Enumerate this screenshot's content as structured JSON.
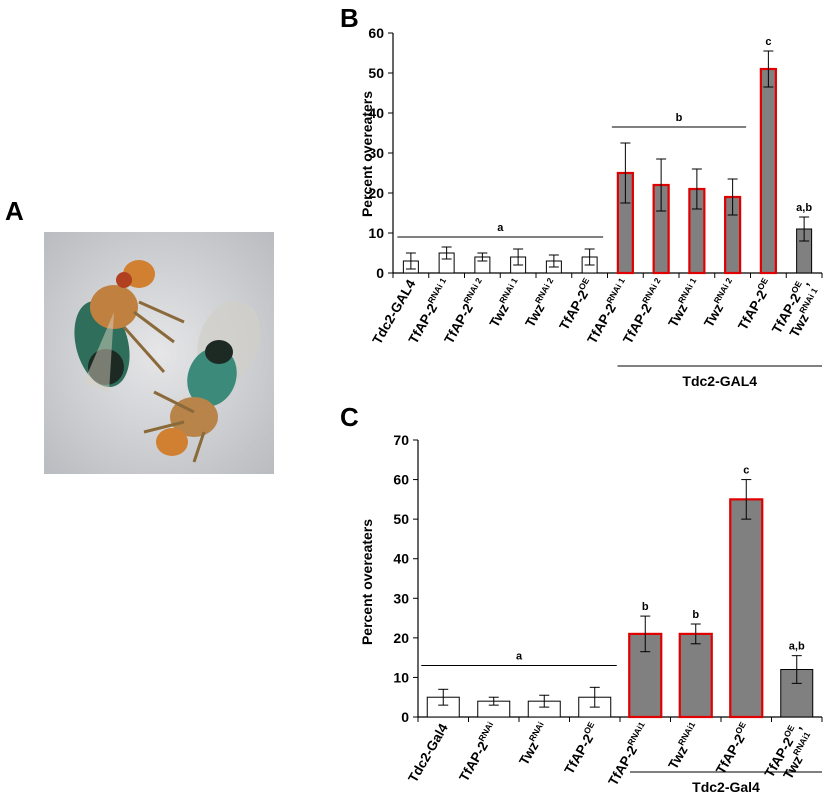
{
  "panels": {
    "a": "A",
    "b": "B",
    "c": "C"
  },
  "photo": {
    "description_icon": "fly-photo"
  },
  "chart_data": [
    {
      "type": "bar",
      "ylabel": "Percent overeaters",
      "ylim": [
        0,
        60
      ],
      "yticks": [
        0,
        10,
        20,
        30,
        40,
        50,
        60
      ],
      "categories": [
        {
          "base": "Tdc2-GAL4",
          "sup": ""
        },
        {
          "base": "TfAP-2",
          "sup": "RNAi 1"
        },
        {
          "base": "TfAP-2",
          "sup": "RNAi 2"
        },
        {
          "base": "Twz",
          "sup": "RNAi 1"
        },
        {
          "base": "Twz",
          "sup": "RNAi 2"
        },
        {
          "base": "TfAP-2",
          "sup": "OE"
        },
        {
          "base": "TfAP-2",
          "sup": "RNAi 1"
        },
        {
          "base": "TfAP-2",
          "sup": "RNAi 2"
        },
        {
          "base": "Twz",
          "sup": "RNAi 1"
        },
        {
          "base": "Twz",
          "sup": "RNAi 2"
        },
        {
          "base": "TfAP-2",
          "sup": "OE"
        },
        {
          "base": "TfAP-2",
          "sup": "OE",
          "base2": "Twz",
          "sup2": "RNAi 1"
        }
      ],
      "values": [
        3,
        5,
        4,
        4,
        3,
        4,
        25,
        22,
        21,
        19,
        51,
        11
      ],
      "errors": [
        2,
        1.5,
        1,
        2,
        1.5,
        2,
        7.5,
        6.5,
        5,
        4.5,
        4.5,
        3
      ],
      "fills": [
        "#ffffff",
        "#ffffff",
        "#ffffff",
        "#ffffff",
        "#ffffff",
        "#ffffff",
        "#808080",
        "#808080",
        "#808080",
        "#808080",
        "#808080",
        "#808080"
      ],
      "strokes": [
        "#000000",
        "#000000",
        "#000000",
        "#000000",
        "#000000",
        "#000000",
        "#e00000",
        "#e00000",
        "#e00000",
        "#e00000",
        "#e00000",
        "#000000"
      ],
      "annotations": [
        {
          "text": "a",
          "from": 0,
          "to": 5,
          "y": 9
        },
        {
          "text": "b",
          "from": 6,
          "to": 9,
          "y": 36.5
        },
        {
          "text": "c",
          "at": 10
        },
        {
          "text": "a,b",
          "at": 11
        }
      ],
      "group_label": {
        "text": "Tdc2-GAL4",
        "from": 6,
        "to": 11
      }
    },
    {
      "type": "bar",
      "ylabel": "Percent overeaters",
      "ylim": [
        0,
        70
      ],
      "yticks": [
        0,
        10,
        20,
        30,
        40,
        50,
        60,
        70
      ],
      "categories": [
        {
          "base": "Tdc2-Gal4",
          "sup": ""
        },
        {
          "base": "TfAP-2",
          "sup": "RNAi"
        },
        {
          "base": "Twz",
          "sup": "RNAi"
        },
        {
          "base": "TfAP-2",
          "sup": "OE"
        },
        {
          "base": "TfAP-2",
          "sup": "RNAi1"
        },
        {
          "base": "Twz",
          "sup": "RNAi1"
        },
        {
          "base": "TfAP-2",
          "sup": "OE"
        },
        {
          "base": "TfAP-2",
          "sup": "OE",
          "base2": "Twz",
          "sup2": "RNAi1"
        }
      ],
      "values": [
        5,
        4,
        4,
        5,
        21,
        21,
        55,
        12
      ],
      "errors": [
        2,
        1,
        1.5,
        2.5,
        4.5,
        2.5,
        5,
        3.5
      ],
      "fills": [
        "#ffffff",
        "#ffffff",
        "#ffffff",
        "#ffffff",
        "#808080",
        "#808080",
        "#808080",
        "#808080"
      ],
      "strokes": [
        "#000000",
        "#000000",
        "#000000",
        "#000000",
        "#e00000",
        "#e00000",
        "#e00000",
        "#000000"
      ],
      "annotations": [
        {
          "text": "a",
          "from": 0,
          "to": 3,
          "y": 13
        },
        {
          "text": "b",
          "at": 4
        },
        {
          "text": "b",
          "at": 5
        },
        {
          "text": "c",
          "at": 6
        },
        {
          "text": "a,b",
          "at": 7
        }
      ],
      "group_label": {
        "text": "Tdc2-Gal4",
        "from": 4,
        "to": 7
      }
    }
  ]
}
